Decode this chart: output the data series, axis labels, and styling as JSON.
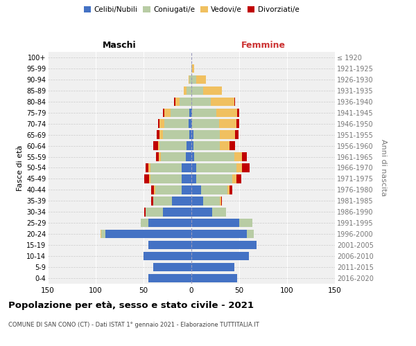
{
  "age_groups": [
    "0-4",
    "5-9",
    "10-14",
    "15-19",
    "20-24",
    "25-29",
    "30-34",
    "35-39",
    "40-44",
    "45-49",
    "50-54",
    "55-59",
    "60-64",
    "65-69",
    "70-74",
    "75-79",
    "80-84",
    "85-89",
    "90-94",
    "95-99",
    "100+"
  ],
  "birth_years": [
    "2016-2020",
    "2011-2015",
    "2006-2010",
    "2001-2005",
    "1996-2000",
    "1991-1995",
    "1986-1990",
    "1981-1985",
    "1976-1980",
    "1971-1975",
    "1966-1970",
    "1961-1965",
    "1956-1960",
    "1951-1955",
    "1946-1950",
    "1941-1945",
    "1936-1940",
    "1931-1935",
    "1926-1930",
    "1921-1925",
    "≤ 1920"
  ],
  "colors": {
    "celibe": "#4472C4",
    "coniugato": "#b8cca4",
    "vedovo": "#f0c060",
    "divorziato": "#c00000"
  },
  "maschi": {
    "celibe": [
      45,
      40,
      50,
      45,
      90,
      45,
      30,
      20,
      10,
      10,
      10,
      6,
      5,
      2,
      3,
      2,
      0,
      0,
      0,
      0,
      0
    ],
    "coniugato": [
      0,
      0,
      0,
      0,
      4,
      8,
      18,
      20,
      28,
      33,
      33,
      26,
      28,
      28,
      25,
      20,
      12,
      5,
      2,
      0,
      0
    ],
    "vedovo": [
      0,
      0,
      0,
      0,
      1,
      0,
      0,
      0,
      1,
      1,
      2,
      2,
      2,
      3,
      5,
      6,
      5,
      3,
      1,
      0,
      0
    ],
    "divorziato": [
      0,
      0,
      0,
      0,
      0,
      0,
      1,
      2,
      3,
      5,
      3,
      3,
      5,
      3,
      2,
      2,
      1,
      0,
      0,
      0,
      0
    ]
  },
  "femmine": {
    "nubile": [
      48,
      45,
      60,
      68,
      58,
      50,
      22,
      12,
      10,
      5,
      5,
      3,
      2,
      2,
      1,
      1,
      0,
      0,
      0,
      0,
      0
    ],
    "coniugata": [
      0,
      0,
      0,
      0,
      7,
      14,
      14,
      18,
      28,
      38,
      42,
      42,
      28,
      28,
      28,
      25,
      20,
      12,
      5,
      1,
      0
    ],
    "vedova": [
      0,
      0,
      0,
      0,
      0,
      0,
      0,
      1,
      2,
      4,
      6,
      8,
      10,
      16,
      18,
      22,
      25,
      20,
      10,
      2,
      0
    ],
    "divorziata": [
      0,
      0,
      0,
      0,
      0,
      0,
      0,
      1,
      3,
      5,
      8,
      5,
      6,
      3,
      3,
      2,
      1,
      0,
      0,
      0,
      0
    ]
  },
  "xlim": 150,
  "title": "Popolazione per età, sesso e stato civile - 2021",
  "subtitle": "COMUNE DI SAN CONO (CT) - Dati ISTAT 1° gennaio 2021 - Elaborazione TUTTITALIA.IT",
  "xlabel_left": "Maschi",
  "xlabel_right": "Femmine",
  "ylabel_left": "Fasce di età",
  "ylabel_right": "Anni di nascita",
  "legend_labels": [
    "Celibi/Nubili",
    "Coniugati/e",
    "Vedovi/e",
    "Divorziati/e"
  ],
  "bg_color": "#f0f0f0",
  "grid_color": "#ffffff",
  "femmine_color": "#cc3333"
}
